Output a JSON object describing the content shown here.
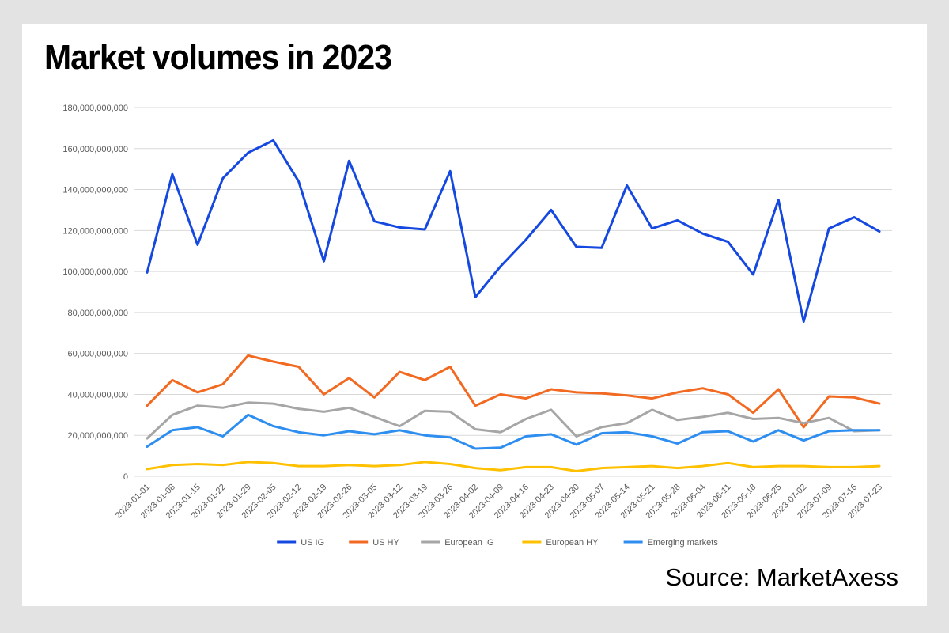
{
  "title": "Market volumes in 2023",
  "source": "Source: MarketAxess",
  "chart_data": {
    "type": "line",
    "title": "Market volumes in 2023",
    "xlabel": "",
    "ylabel": "",
    "ylim": [
      0,
      180000000000
    ],
    "y_ticks": [
      0,
      20000000000,
      40000000000,
      60000000000,
      80000000000,
      100000000000,
      120000000000,
      140000000000,
      160000000000,
      180000000000
    ],
    "y_tick_labels": [
      "0",
      "20,000,000,000",
      "40,000,000,000",
      "60,000,000,000",
      "80,000,000,000",
      "100,000,000,000",
      "120,000,000,000",
      "140,000,000,000",
      "160,000,000,000",
      "180,000,000,000"
    ],
    "grid": true,
    "legend_position": "bottom",
    "categories": [
      "2023-01-01",
      "2023-01-08",
      "2023-01-15",
      "2023-01-22",
      "2023-01-29",
      "2023-02-05",
      "2023-02-12",
      "2023-02-19",
      "2023-02-26",
      "2023-03-05",
      "2023-03-12",
      "2023-03-19",
      "2023-03-26",
      "2023-04-02",
      "2023-04-09",
      "2023-04-16",
      "2023-04-23",
      "2023-04-30",
      "2023-05-07",
      "2023-05-14",
      "2023-05-21",
      "2023-05-28",
      "2023-06-04",
      "2023-06-11",
      "2023-06-18",
      "2023-06-25",
      "2023-07-02",
      "2023-07-09",
      "2023-07-16",
      "2023-07-23"
    ],
    "series": [
      {
        "name": "US IG",
        "color": "#1448e0",
        "values": [
          99500000000,
          147500000000,
          113000000000,
          145500000000,
          158000000000,
          164000000000,
          144000000000,
          105000000000,
          154000000000,
          124500000000,
          121500000000,
          120500000000,
          149000000000,
          87500000000,
          102500000000,
          115500000000,
          130000000000,
          112000000000,
          111500000000,
          142000000000,
          121000000000,
          125000000000,
          118500000000,
          114500000000,
          98500000000,
          135000000000,
          75500000000,
          121000000000,
          126500000000,
          119500000000
        ]
      },
      {
        "name": "US HY",
        "color": "#f26a21",
        "values": [
          34500000000,
          47000000000,
          41000000000,
          45000000000,
          59000000000,
          56000000000,
          53500000000,
          40000000000,
          48000000000,
          38500000000,
          51000000000,
          47000000000,
          53500000000,
          34500000000,
          40000000000,
          38000000000,
          42500000000,
          41000000000,
          40500000000,
          39500000000,
          38000000000,
          41000000000,
          43000000000,
          40000000000,
          31000000000,
          42500000000,
          24000000000,
          39000000000,
          38500000000,
          35500000000
        ]
      },
      {
        "name": "European IG",
        "color": "#a6a6a6",
        "values": [
          18500000000,
          30000000000,
          34500000000,
          33500000000,
          36000000000,
          35500000000,
          33000000000,
          31500000000,
          33500000000,
          29000000000,
          24500000000,
          32000000000,
          31500000000,
          23000000000,
          21500000000,
          28000000000,
          32500000000,
          19500000000,
          24000000000,
          26000000000,
          32500000000,
          27500000000,
          29000000000,
          31000000000,
          28000000000,
          28500000000,
          26000000000,
          28500000000,
          22000000000,
          22500000000
        ]
      },
      {
        "name": "European HY",
        "color": "#ffc000",
        "values": [
          3500000000,
          5500000000,
          6000000000,
          5500000000,
          7000000000,
          6500000000,
          5000000000,
          5000000000,
          5500000000,
          5000000000,
          5500000000,
          7000000000,
          6000000000,
          4000000000,
          3000000000,
          4500000000,
          4500000000,
          2500000000,
          4000000000,
          4500000000,
          5000000000,
          4000000000,
          5000000000,
          6500000000,
          4500000000,
          5000000000,
          5000000000,
          4500000000,
          4500000000,
          5000000000
        ]
      },
      {
        "name": "Emerging markets",
        "color": "#2e8ef0",
        "values": [
          14500000000,
          22500000000,
          24000000000,
          19500000000,
          30000000000,
          24500000000,
          21500000000,
          20000000000,
          22000000000,
          20500000000,
          22500000000,
          20000000000,
          19000000000,
          13500000000,
          14000000000,
          19500000000,
          20500000000,
          15500000000,
          21000000000,
          21500000000,
          19500000000,
          16000000000,
          21500000000,
          22000000000,
          17000000000,
          22500000000,
          17500000000,
          22000000000,
          22500000000,
          22500000000
        ]
      }
    ]
  }
}
